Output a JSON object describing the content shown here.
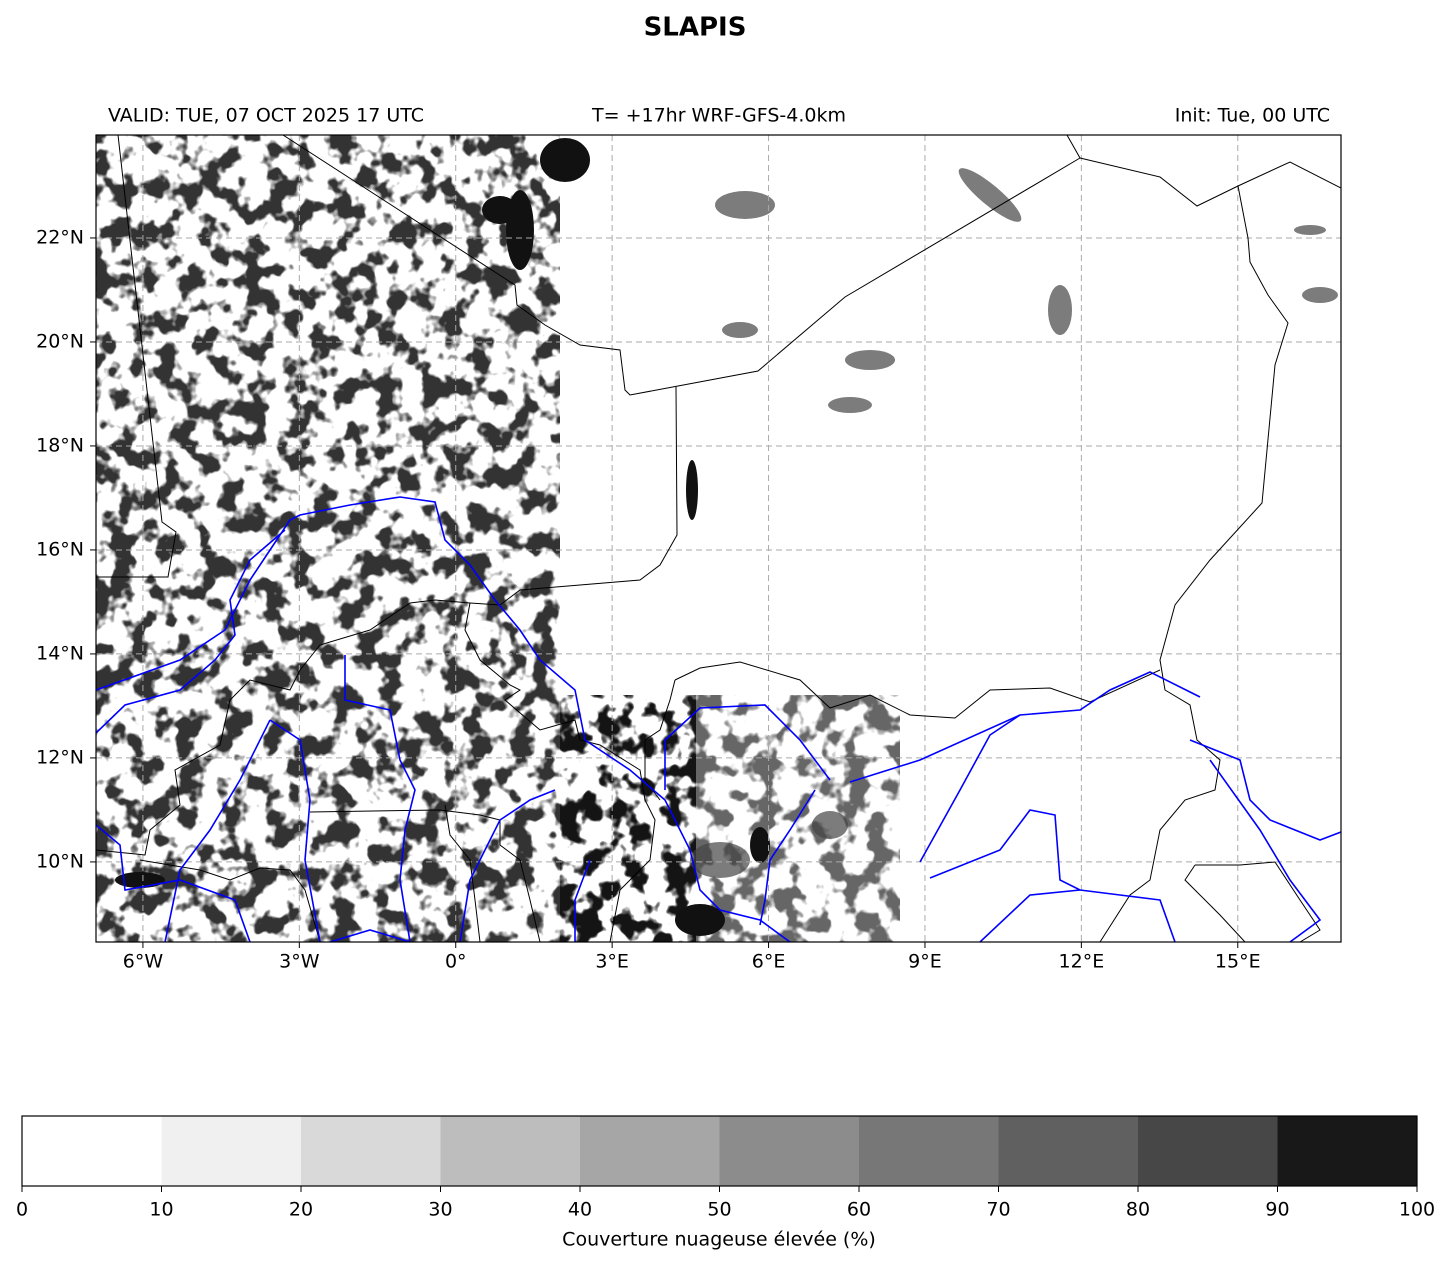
{
  "title": "SLAPIS",
  "header": {
    "left": "VALID: TUE, 07 OCT 2025 17 UTC",
    "center": "T= +17hr WRF-GFS-4.0km",
    "right": "Init: Tue, 00 UTC"
  },
  "map": {
    "lonlim": [
      -6.9,
      16.98
    ],
    "latlim": [
      8.46,
      23.98
    ],
    "lonticks": [
      {
        "value": -6,
        "label": "6°W"
      },
      {
        "value": -3,
        "label": "3°W"
      },
      {
        "value": 0,
        "label": "0°"
      },
      {
        "value": 3,
        "label": "3°E"
      },
      {
        "value": 6,
        "label": "6°E"
      },
      {
        "value": 9,
        "label": "9°E"
      },
      {
        "value": 12,
        "label": "12°E"
      },
      {
        "value": 15,
        "label": "15°E"
      }
    ],
    "latticks": [
      {
        "value": 10,
        "label": "10°N"
      },
      {
        "value": 12,
        "label": "12°N"
      },
      {
        "value": 14,
        "label": "14°N"
      },
      {
        "value": 16,
        "label": "16°N"
      },
      {
        "value": 18,
        "label": "18°N"
      },
      {
        "value": 20,
        "label": "20°N"
      },
      {
        "value": 22,
        "label": "22°N"
      }
    ],
    "grid": true
  },
  "colorbar": {
    "label": "Couverture nuageuse élevée (%)",
    "ticks": [
      0,
      10,
      20,
      30,
      40,
      50,
      60,
      70,
      80,
      90,
      100
    ],
    "colors": [
      "#ffffff",
      "#f0f0f0",
      "#d9d9d9",
      "#bdbdbd",
      "#a6a6a6",
      "#8c8c8c",
      "#777777",
      "#606060",
      "#474747",
      "#181818"
    ]
  }
}
